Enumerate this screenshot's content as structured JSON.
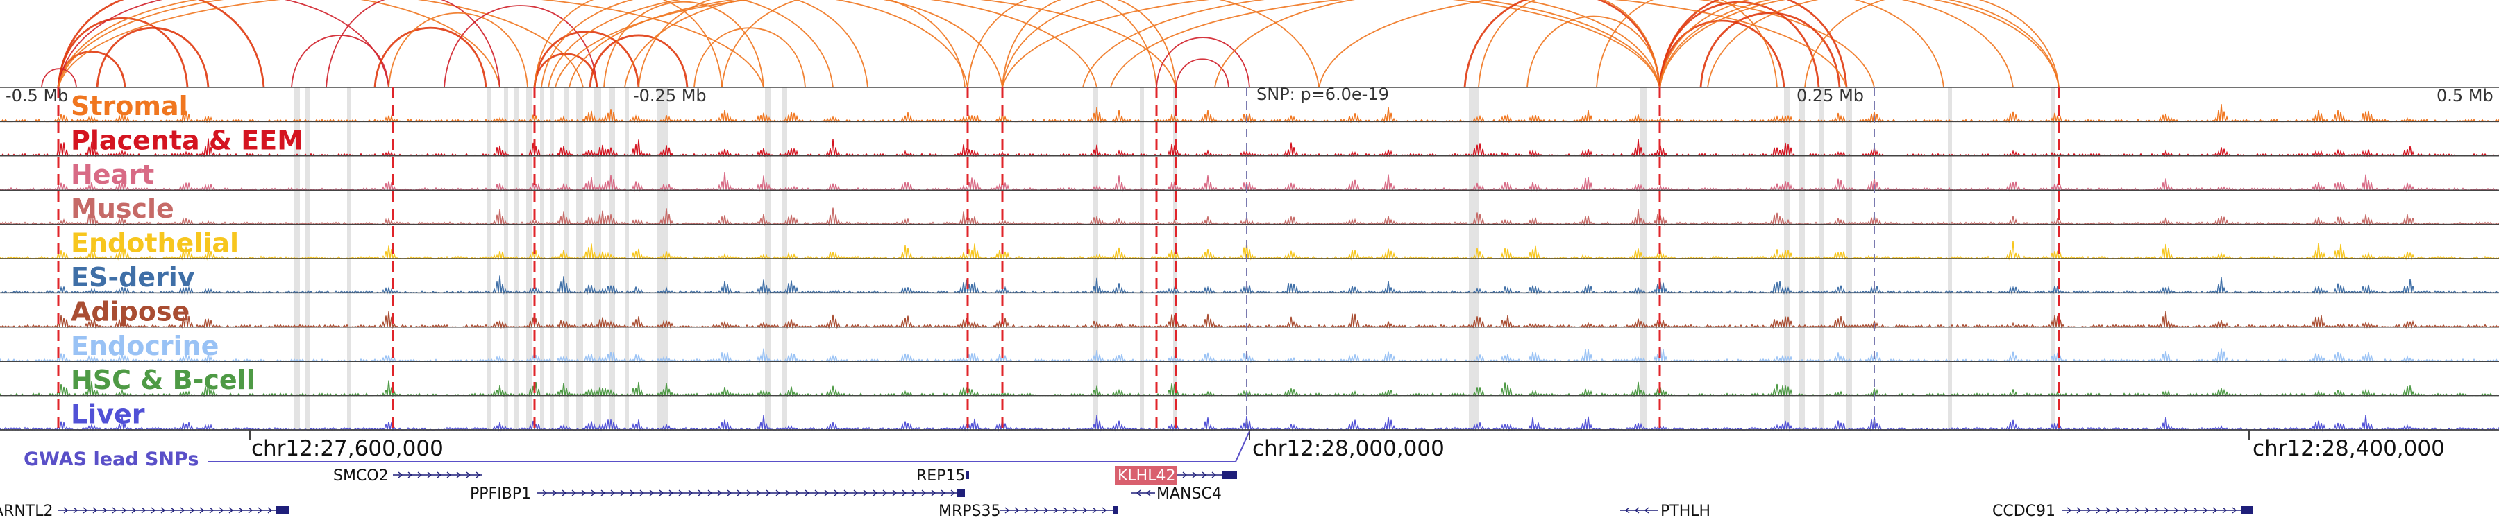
{
  "axis_labels": {
    "minus_half": "-0.5 Mb",
    "minus_quarter": "-0.25 Mb",
    "plus_quarter": "0.25 Mb",
    "plus_half": "0.5 Mb"
  },
  "snp_label": "SNP: p=6.0e-19",
  "tracks": [
    {
      "id": "stromal",
      "label": "Stromal",
      "color": "#f0761f"
    },
    {
      "id": "placenta",
      "label": "Placenta & EEM",
      "color": "#d41420"
    },
    {
      "id": "heart",
      "label": "Heart",
      "color": "#d86a85"
    },
    {
      "id": "muscle",
      "label": "Muscle",
      "color": "#c66a67"
    },
    {
      "id": "endothelial",
      "label": "Endothelial",
      "color": "#f7c61e"
    },
    {
      "id": "es-deriv",
      "label": "ES-deriv",
      "color": "#3f6fa7"
    },
    {
      "id": "adipose",
      "label": "Adipose",
      "color": "#a94d32"
    },
    {
      "id": "endocrine",
      "label": "Endocrine",
      "color": "#99c2f5"
    },
    {
      "id": "hsc",
      "label": "HSC & B-cell",
      "color": "#4e9a45"
    },
    {
      "id": "liver",
      "label": "Liver",
      "color": "#5151d6"
    }
  ],
  "coordinates": {
    "c1": "chr12:27,600,000",
    "c2": "chr12:28,000,000",
    "c3": "chr12:28,400,000"
  },
  "gwas_label": "GWAS lead SNPs",
  "genes": {
    "smco2": "SMCO2",
    "ppfibp1": "PPFIBP1",
    "arntl2": "ARNTL2",
    "rep15": "REP15",
    "klhl42": "KLHL42",
    "mansc4": "MANSC4",
    "mrps35": "MRPS35",
    "pthlh": "PTHLH",
    "ccdc91": "CCDC91"
  },
  "colors": {
    "arc": "#f0761f",
    "arc_dark": "#e03a10",
    "arc_red": "#d0202a",
    "gene": "#1f1f7a",
    "gwas": "#5a50c8",
    "highlight": "#d9606e",
    "dashed": "#e0242a"
  }
}
